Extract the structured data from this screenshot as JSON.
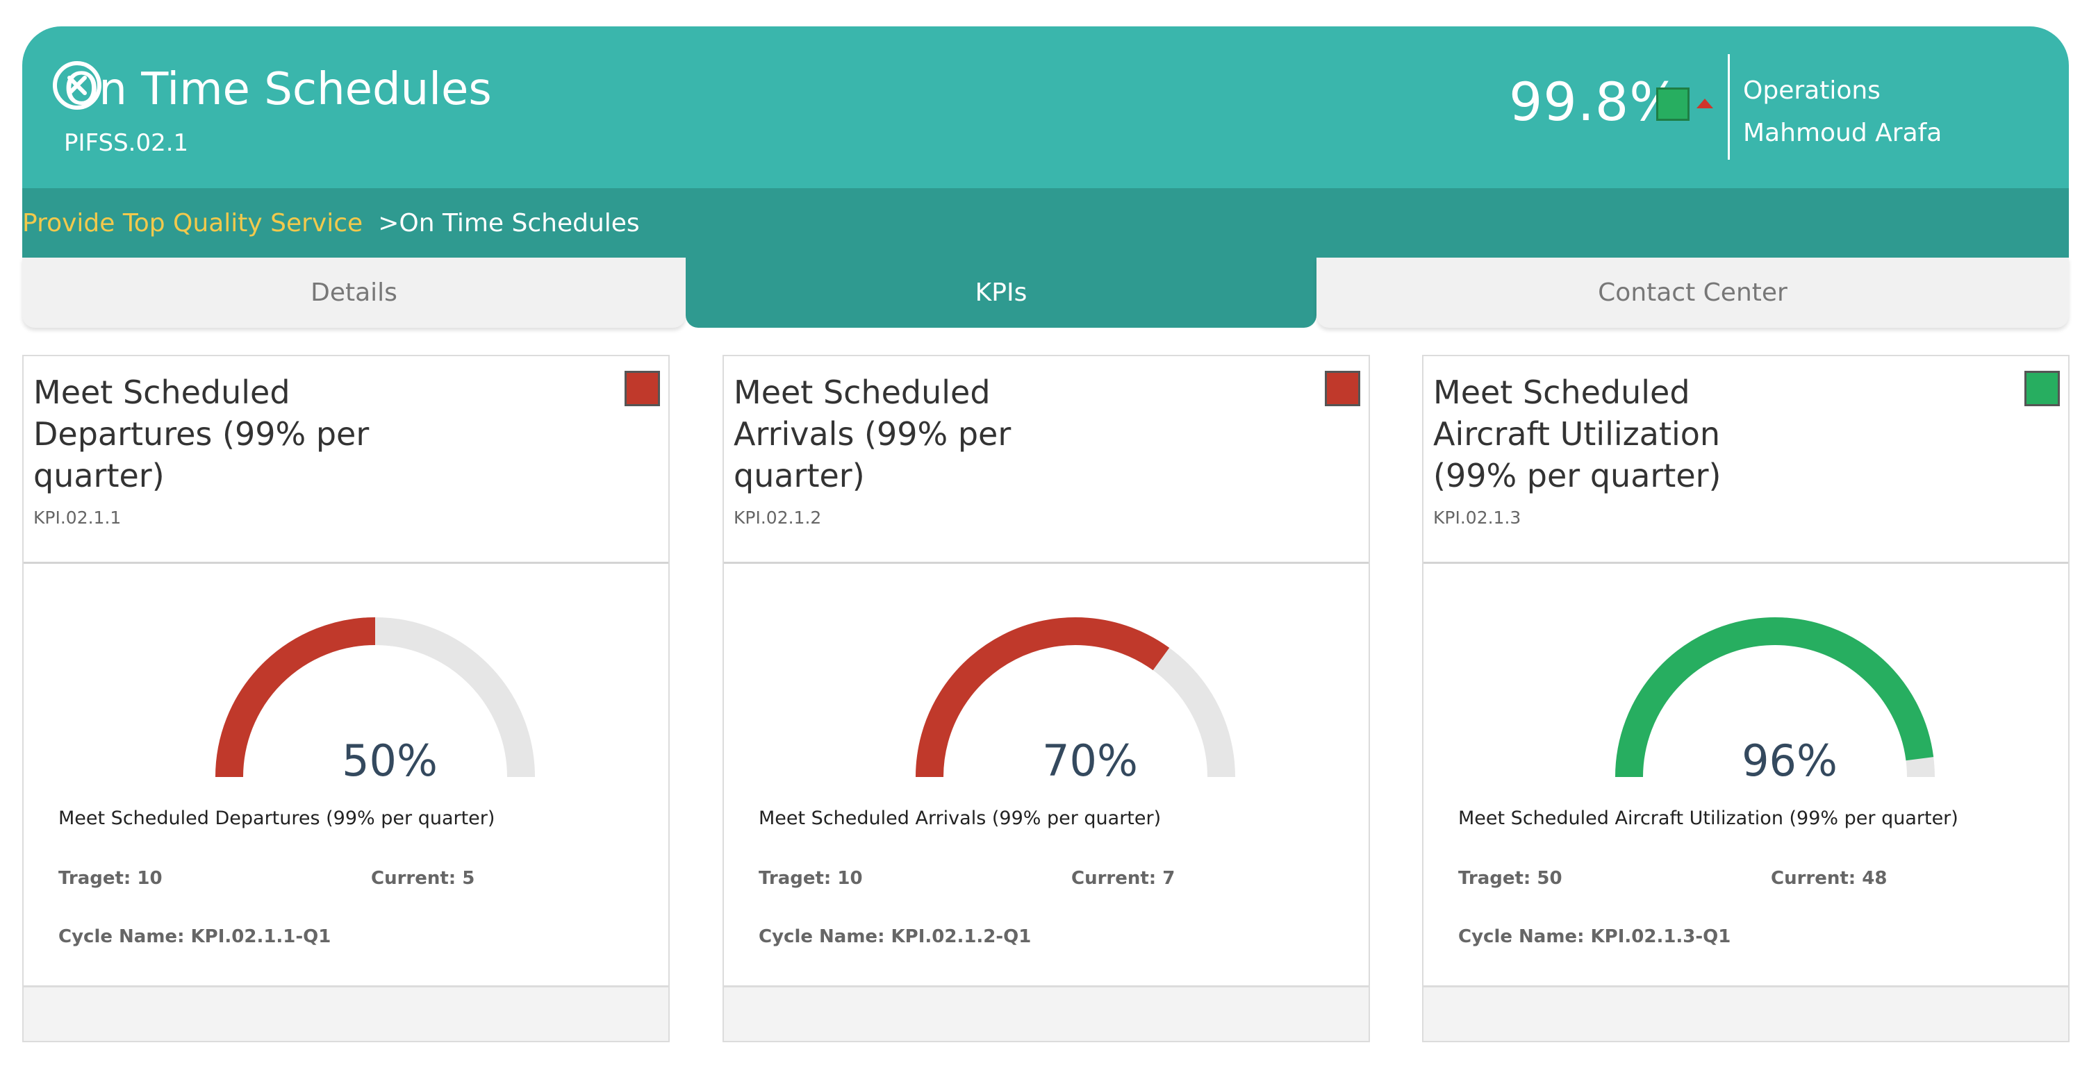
{
  "header": {
    "title": "On Time Schedules",
    "code": "PIFSS.02.1",
    "score": "99.8%",
    "score_status_color": "#27ae60",
    "trend": "up",
    "trend_color": "#d0342c",
    "owner_department": "Operations",
    "owner_name": "Mahmoud Arafa",
    "close_icon": "close-circle-icon"
  },
  "breadcrumb": {
    "parent": "Provide Top Quality Service",
    "separator": ">",
    "current": "On Time Schedules"
  },
  "tabs": [
    {
      "label": "Details",
      "active": false
    },
    {
      "label": "KPIs",
      "active": true
    },
    {
      "label": "Contact Center",
      "active": false
    }
  ],
  "colors": {
    "header_bg": "#3ab6ac",
    "breadcrumb_bg": "#2f9a90",
    "breadcrumb_parent": "#f2c94c",
    "status_red": "#c0392b",
    "status_green": "#27ae60",
    "gauge_track": "#e6e6e6"
  },
  "kpis": [
    {
      "title": "Meet Scheduled Departures (99% per quarter)",
      "code": "KPI.02.1.1",
      "status_color": "#c0392b",
      "gauge_percent": 50,
      "gauge_label": "50%",
      "description": "Meet Scheduled Departures (99% per quarter)",
      "target": "Traget: 10",
      "current": "Current: 5",
      "cycle": "Cycle Name: KPI.02.1.1-Q1"
    },
    {
      "title": "Meet Scheduled Arrivals (99% per quarter)",
      "code": "KPI.02.1.2",
      "status_color": "#c0392b",
      "gauge_percent": 70,
      "gauge_label": "70%",
      "description": "Meet Scheduled Arrivals (99% per quarter)",
      "target": "Traget: 10",
      "current": "Current: 7",
      "cycle": "Cycle Name: KPI.02.1.2-Q1"
    },
    {
      "title": "Meet Scheduled Aircraft Utilization (99% per quarter)",
      "code": "KPI.02.1.3",
      "status_color": "#27ae60",
      "gauge_percent": 96,
      "gauge_label": "96%",
      "description": "Meet Scheduled Aircraft Utilization (99% per quarter)",
      "target": "Traget: 50",
      "current": "Current: 48",
      "cycle": "Cycle Name: KPI.02.1.3-Q1"
    }
  ]
}
